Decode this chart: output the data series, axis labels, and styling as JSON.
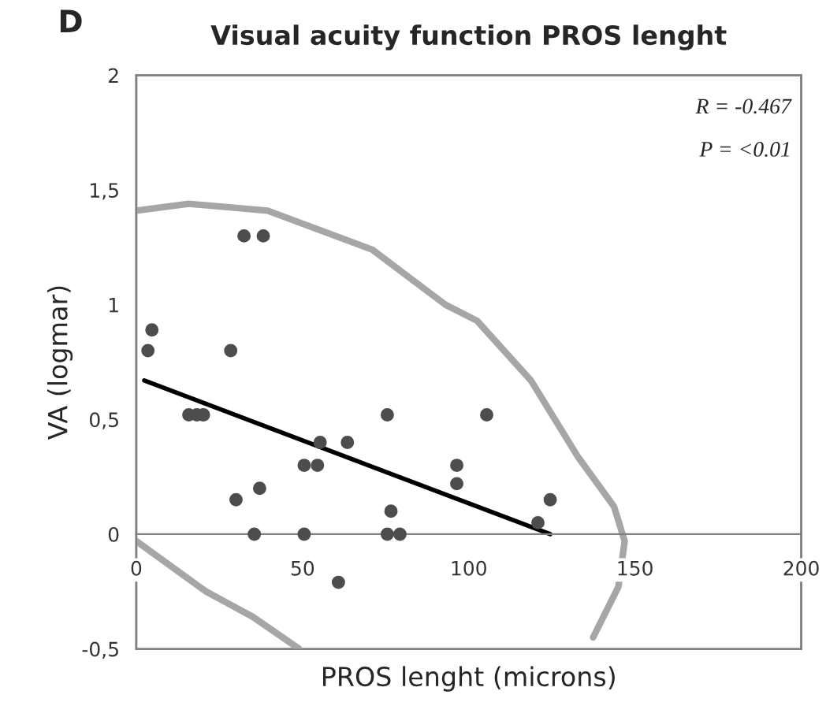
{
  "chart_data": {
    "type": "scatter",
    "title": "Visual acuity function PROS lenght",
    "xlabel": "PROS lenght (microns)",
    "ylabel": "VA (logmar)",
    "annotations": [
      "D",
      "R = -0.467",
      "P = <0.01"
    ],
    "series": [
      {
        "color": "#4d4d4d",
        "x": [
          3.5,
          4.7,
          32.4,
          38.2,
          28.4,
          15.8,
          18.2,
          20.2,
          30,
          37.1,
          35.5,
          50.5,
          50.5,
          54.5,
          55.3,
          63.5,
          60.8,
          75.5,
          76.6,
          75.5,
          79.3,
          96.4,
          96.4,
          105.4,
          124.5,
          120.8
        ],
        "values": [
          0.8,
          0.89,
          1.3,
          1.3,
          0.8,
          0.52,
          0.52,
          0.52,
          0.15,
          0.2,
          0,
          0,
          0.3,
          0.3,
          0.4,
          0.4,
          -0.21,
          0.52,
          0.1,
          0,
          0,
          0.3,
          0.22,
          0.52,
          0.15,
          0.05
        ]
      },
      {
        "type": "line",
        "marker": "none",
        "color": "#000000",
        "x": [
          2.4,
          124.5
        ],
        "values": [
          0.67,
          0.0
        ]
      },
      {
        "type": "line",
        "marker": "none",
        "color": "#a6a6a6",
        "x": [
          0,
          15.8,
          39.5,
          71,
          93,
          102.5,
          118.7,
          132.7,
          143.7,
          146.9,
          145,
          137.4
        ],
        "values": [
          1.41,
          1.44,
          1.41,
          1.24,
          1.0,
          0.93,
          0.67,
          0.34,
          0.12,
          -0.03,
          -0.23,
          -0.45
        ]
      },
      {
        "type": "line",
        "marker": "none",
        "color": "#a6a6a6",
        "x": [
          0,
          21,
          35,
          49
        ],
        "values": [
          -0.03,
          -0.25,
          -0.36,
          -0.5
        ]
      }
    ],
    "xlim": [
      0,
      200
    ],
    "xticks": [
      0,
      50,
      100,
      150,
      200
    ],
    "ylim": [
      -0.5,
      2
    ],
    "yticks": [
      {
        "value": -0.5,
        "label": "-0,5"
      },
      0,
      {
        "value": 0.5,
        "label": "0,5"
      },
      1,
      {
        "value": 1.5,
        "label": "1,5"
      },
      2
    ],
    "grid": false,
    "legend": false,
    "marker": "circle"
  }
}
